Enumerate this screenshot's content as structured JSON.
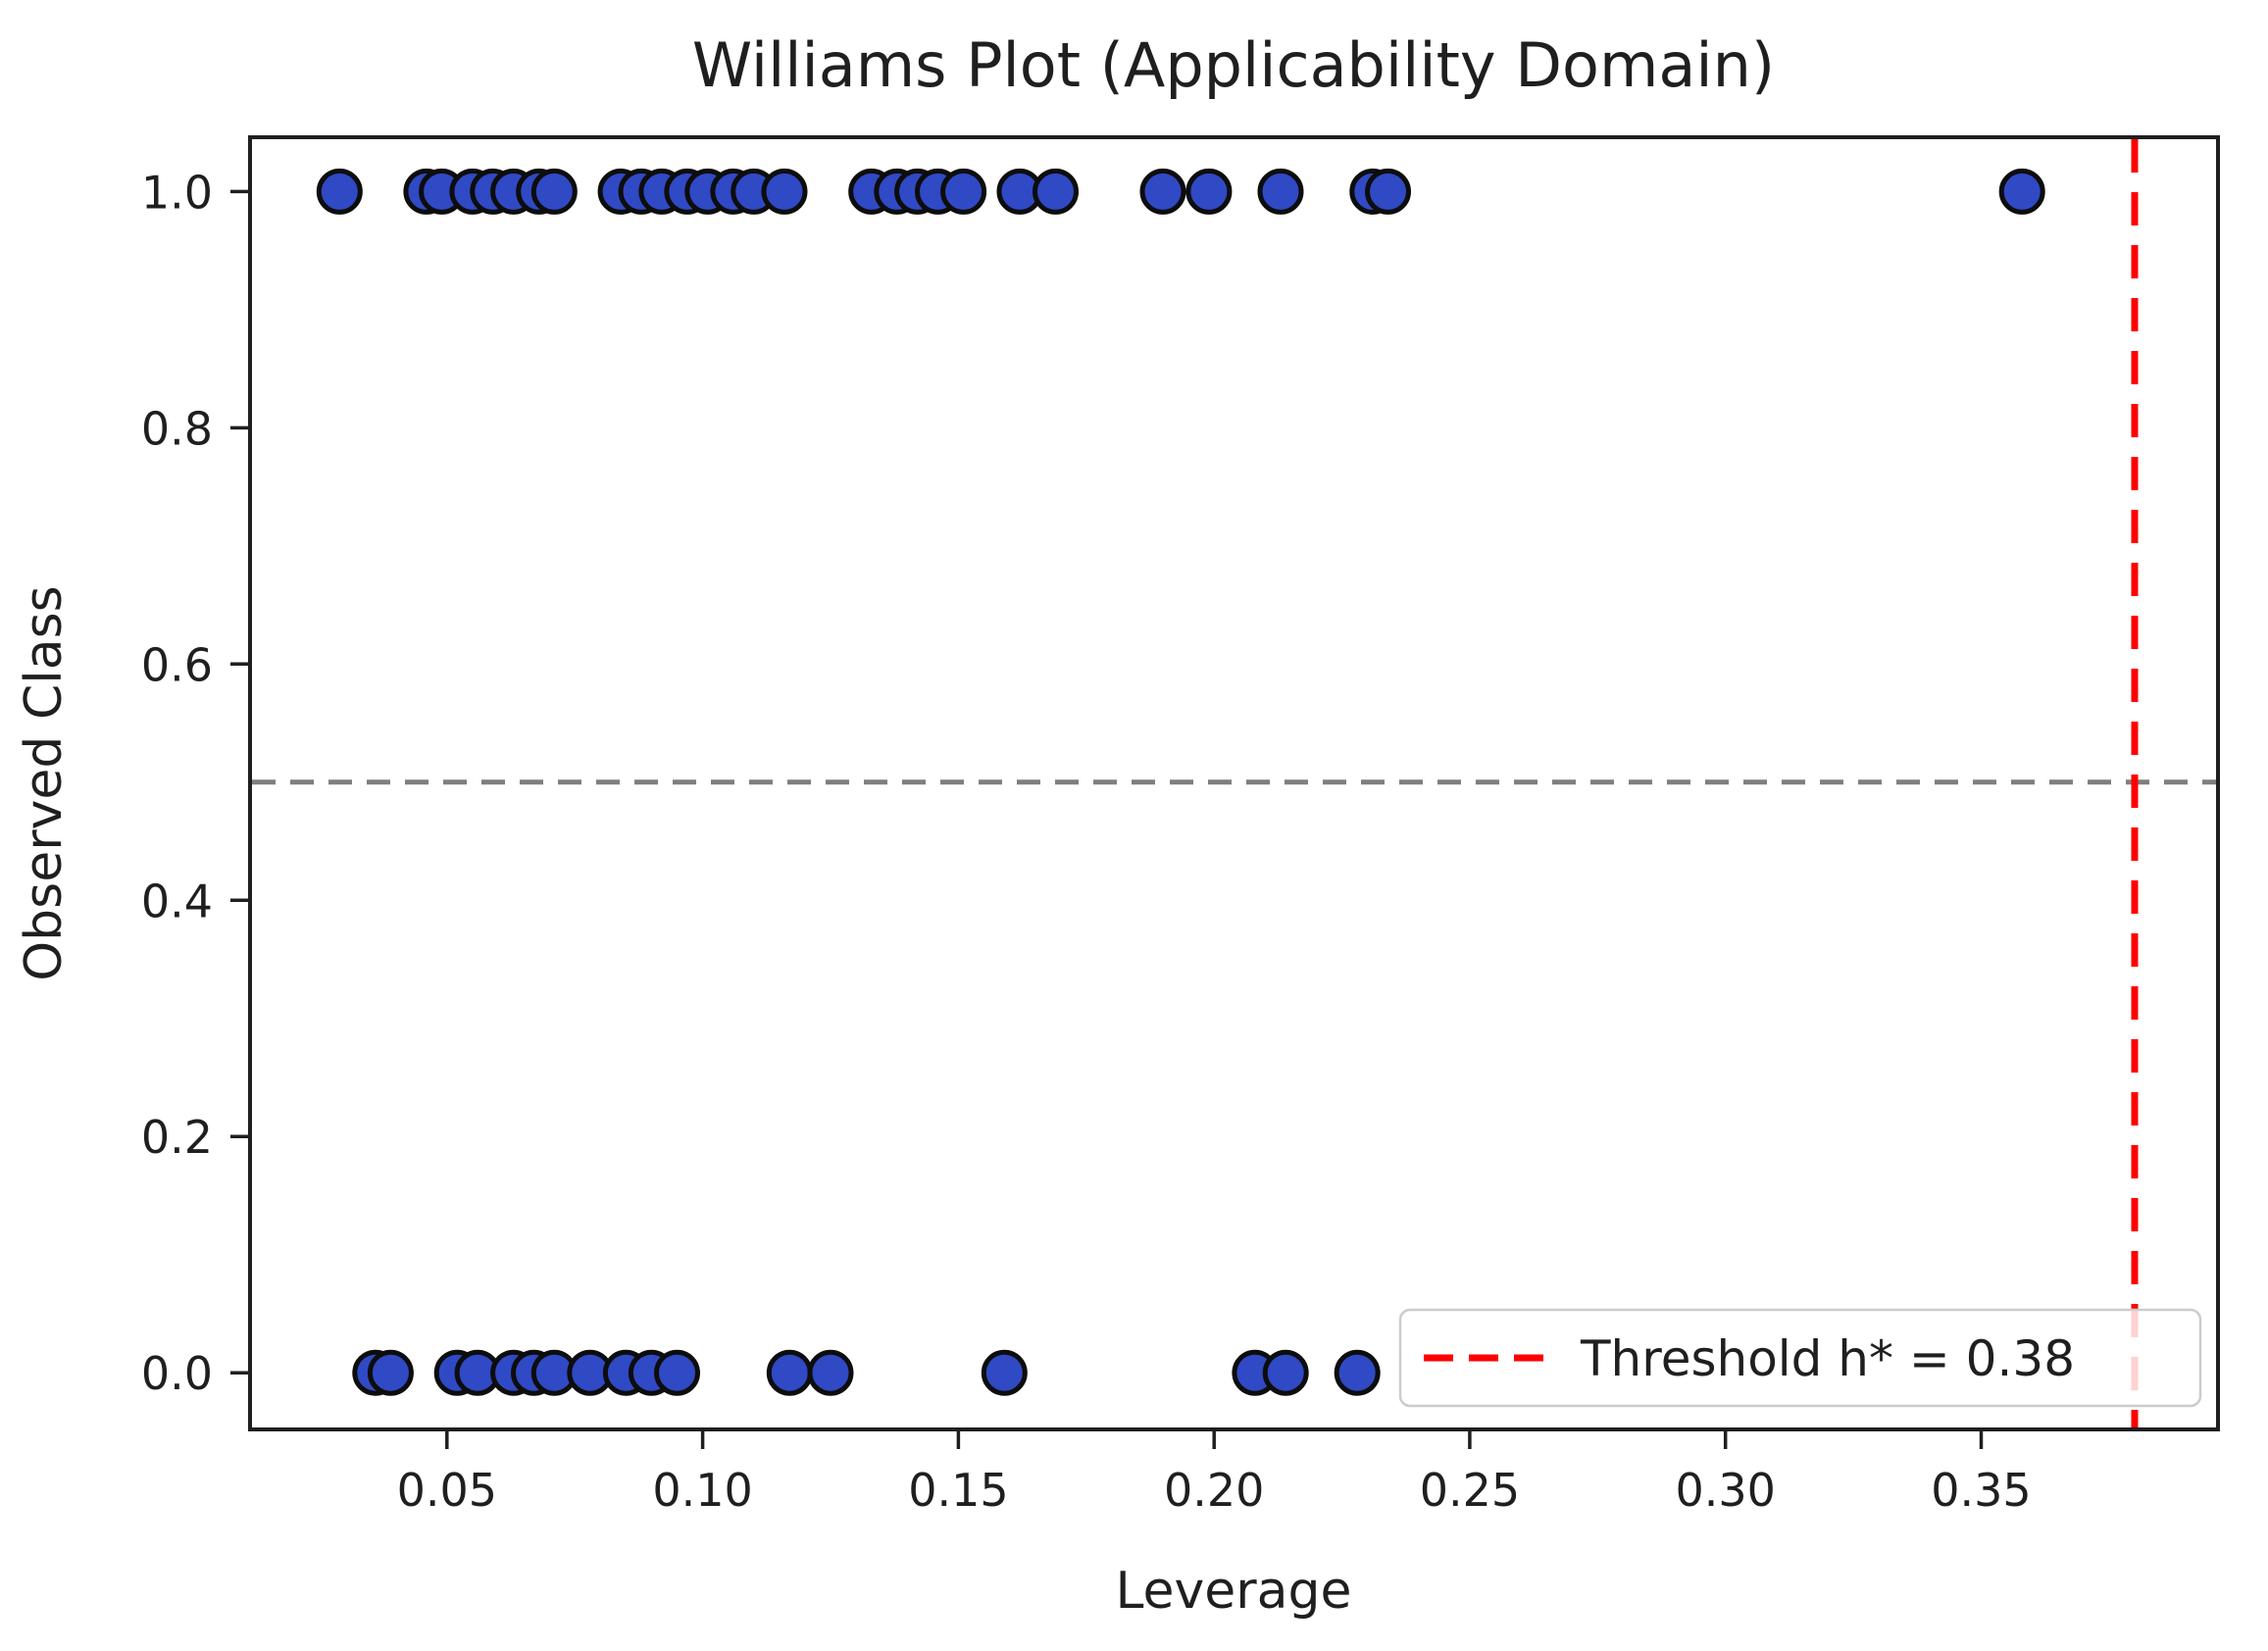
{
  "chart_data": {
    "type": "scatter",
    "title": "Williams Plot (Applicability Domain)",
    "xlabel": "Leverage",
    "ylabel": "Observed Class",
    "xlim": [
      0.0115,
      0.3963
    ],
    "ylim": [
      -0.048,
      1.046
    ],
    "xticks": [
      0.05,
      0.1,
      0.15,
      0.2,
      0.25,
      0.3,
      0.35
    ],
    "xtick_labels": [
      "0.05",
      "0.10",
      "0.15",
      "0.20",
      "0.25",
      "0.30",
      "0.35"
    ],
    "yticks": [
      0.0,
      0.2,
      0.4,
      0.6,
      0.8,
      1.0
    ],
    "ytick_labels": [
      "0.0",
      "0.2",
      "0.4",
      "0.6",
      "0.8",
      "1.0"
    ],
    "grid": false,
    "marker": {
      "shape": "circle",
      "fill": "#3049c5",
      "edge": "#0d0d0d"
    },
    "series": [
      {
        "name": "observed-class-1",
        "y_value": 1.0,
        "x": [
          0.029,
          0.046,
          0.049,
          0.055,
          0.059,
          0.063,
          0.068,
          0.071,
          0.084,
          0.088,
          0.092,
          0.097,
          0.101,
          0.106,
          0.11,
          0.116,
          0.133,
          0.138,
          0.142,
          0.146,
          0.151,
          0.162,
          0.169,
          0.19,
          0.199,
          0.213,
          0.231,
          0.234,
          0.358
        ]
      },
      {
        "name": "observed-class-0",
        "y_value": 0.0,
        "x": [
          0.036,
          0.039,
          0.052,
          0.056,
          0.063,
          0.067,
          0.071,
          0.078,
          0.085,
          0.09,
          0.095,
          0.117,
          0.125,
          0.159,
          0.208,
          0.214,
          0.228
        ]
      }
    ],
    "reference_lines": [
      {
        "name": "class-boundary",
        "orientation": "horizontal",
        "value": 0.5,
        "color": "#7f7f7f",
        "style": "dashed"
      },
      {
        "name": "threshold",
        "orientation": "vertical",
        "value": 0.38,
        "color": "#ff0000",
        "style": "dashed"
      }
    ],
    "legend": {
      "position": "lower right",
      "entries": [
        {
          "label": "Threshold h* = 0.38",
          "color": "#ff0000",
          "style": "dashed"
        }
      ]
    }
  }
}
